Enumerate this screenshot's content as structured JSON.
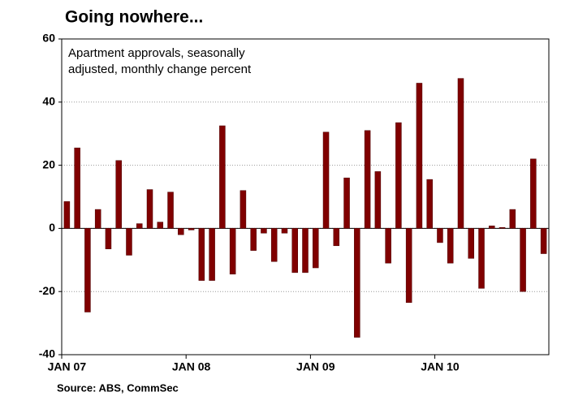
{
  "chart_data": {
    "type": "bar",
    "title": "Going nowhere...",
    "subtitle": [
      "Apartment approvals, seasonally",
      "adjusted, monthly change percent"
    ],
    "source": "Source: ABS, CommSec",
    "categories": [
      "JAN 07",
      null,
      null,
      null,
      null,
      null,
      null,
      null,
      null,
      null,
      null,
      null,
      "JAN 08",
      null,
      null,
      null,
      null,
      null,
      null,
      null,
      null,
      null,
      null,
      null,
      "JAN 09",
      null,
      null,
      null,
      null,
      null,
      null,
      null,
      null,
      null,
      null,
      null,
      "JAN 10",
      null,
      null,
      null,
      null,
      null,
      null,
      null,
      null,
      null,
      null
    ],
    "values": [
      8.5,
      25.5,
      -26.5,
      6,
      -6.5,
      21.5,
      -8.5,
      1.5,
      12.3,
      2,
      11.5,
      -2,
      -0.5,
      -16.5,
      -16.5,
      32.5,
      -14.5,
      12,
      -7,
      -1.5,
      -10.5,
      -1.5,
      -14,
      -14,
      -12.5,
      30.5,
      -5.5,
      16,
      -34.5,
      31,
      18,
      -11,
      33.5,
      -23.5,
      46,
      15.5,
      -4.5,
      -11,
      47.5,
      -9.5,
      -19,
      0.8,
      0.3,
      6,
      -20,
      22,
      -8
    ],
    "color": "#800000",
    "ylim": [
      -40,
      60
    ],
    "yticks": [
      -40,
      -20,
      0,
      20,
      40,
      60
    ],
    "grid": true
  }
}
